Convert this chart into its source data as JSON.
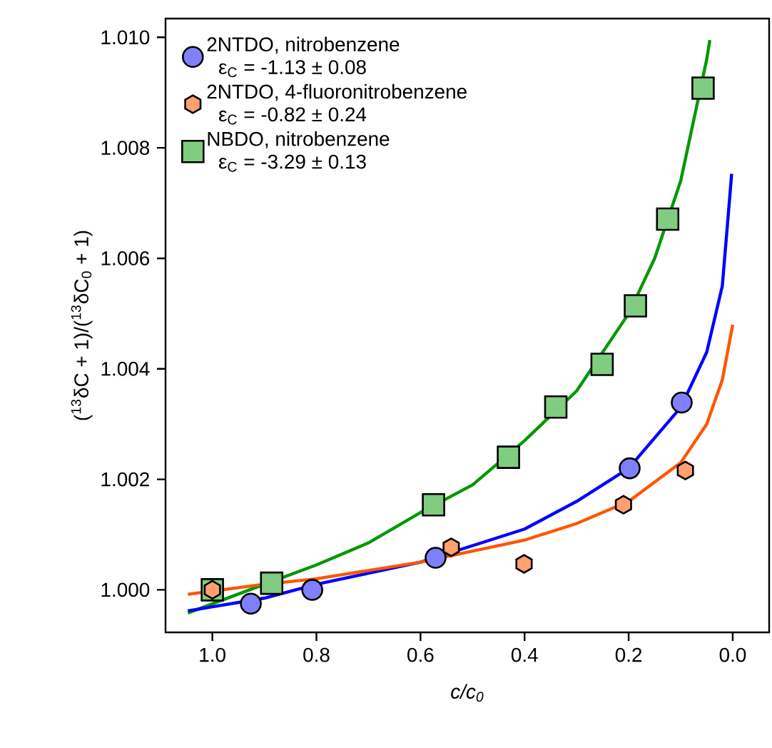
{
  "chart_data": {
    "type": "scatter",
    "xlabel": "c/c$_{0}$",
    "ylabel": "($^{13}$δC + 1)/($^{13}$δC$_{0}$ + 1)",
    "xlim": [
      1.09,
      -0.07
    ],
    "ylim": [
      0.99923,
      1.01034
    ],
    "xticks": [
      {
        "value": 1.0,
        "label": "1.0"
      },
      {
        "value": 0.8,
        "label": "0.8"
      },
      {
        "value": 0.6,
        "label": "0.6"
      },
      {
        "value": 0.4,
        "label": "0.4"
      },
      {
        "value": 0.2,
        "label": "0.2"
      },
      {
        "value": 0.0,
        "label": "0.0"
      }
    ],
    "yticks": [
      {
        "value": 1.0,
        "label": "1.000"
      },
      1.002,
      1.004,
      1.006,
      1.008,
      {
        "value": 1.01,
        "label": "1.010"
      }
    ],
    "legend": "top left",
    "grid": false,
    "annotations": [
      "ε$_{C}$ = -1.13 ± 0.08",
      "ε$_{C}$ = -0.82 ± 0.24",
      "ε$_{C}$ = -3.29 ± 0.13"
    ],
    "series": [
      {
        "type": "line",
        "marker": "none",
        "color": "#009900",
        "x": [
          1.047,
          0.9,
          0.8,
          0.7,
          0.6,
          0.5,
          0.4,
          0.3,
          0.2,
          0.15,
          0.1,
          0.05,
          0.044
        ],
        "values": [
          0.99958,
          1.0001,
          1.00045,
          1.00085,
          1.0014,
          1.0019,
          1.0027,
          1.0036,
          1.005,
          1.006,
          1.0074,
          1.0096,
          1.00995
        ]
      },
      {
        "type": "line",
        "marker": "none",
        "color": "#0000ff",
        "x": [
          1.047,
          0.9,
          0.8,
          0.7,
          0.6,
          0.5,
          0.4,
          0.3,
          0.2,
          0.1,
          0.05,
          0.02,
          0.002
        ],
        "values": [
          0.99962,
          0.99985,
          1.0001,
          1.0003,
          1.0005,
          1.0008,
          1.0011,
          1.0016,
          1.0022,
          1.0033,
          1.0043,
          1.0055,
          1.00753
        ]
      },
      {
        "type": "line",
        "marker": "none",
        "color": "#ff5500",
        "x": [
          1.047,
          0.9,
          0.8,
          0.6,
          0.5,
          0.4,
          0.3,
          0.2,
          0.1,
          0.05,
          0.02,
          0.0
        ],
        "values": [
          0.99992,
          1.0001,
          1.0002,
          1.0005,
          1.0007,
          1.0009,
          1.0012,
          1.0016,
          1.0023,
          1.003,
          1.0038,
          1.0048
        ]
      },
      {
        "name": "2NTDO,  nitrobenzene",
        "marker": "circle",
        "color": "#8080ff",
        "x": [
          0.926,
          0.808,
          0.571,
          0.198,
          0.098
        ],
        "values": [
          0.99975,
          1.0,
          1.00058,
          1.0022,
          1.00339
        ]
      },
      {
        "name": "2NTDO, 4-fluoronitrobenzene",
        "color": "#ffa070",
        "x": [
          1.0,
          0.541,
          0.401,
          0.21,
          0.091
        ],
        "values": [
          1.0,
          1.00077,
          1.00047,
          1.00154,
          1.00216
        ]
      },
      {
        "name": "NBDO, nitrobenzene",
        "marker": "square",
        "color": "#80cc80",
        "x": [
          1.0,
          0.886,
          0.575,
          0.431,
          0.34,
          0.251,
          0.187,
          0.125,
          0.057
        ],
        "values": [
          1.0,
          1.00012,
          1.00154,
          1.0024,
          1.00331,
          1.00408,
          1.00514,
          1.00671,
          1.00908
        ]
      }
    ]
  }
}
